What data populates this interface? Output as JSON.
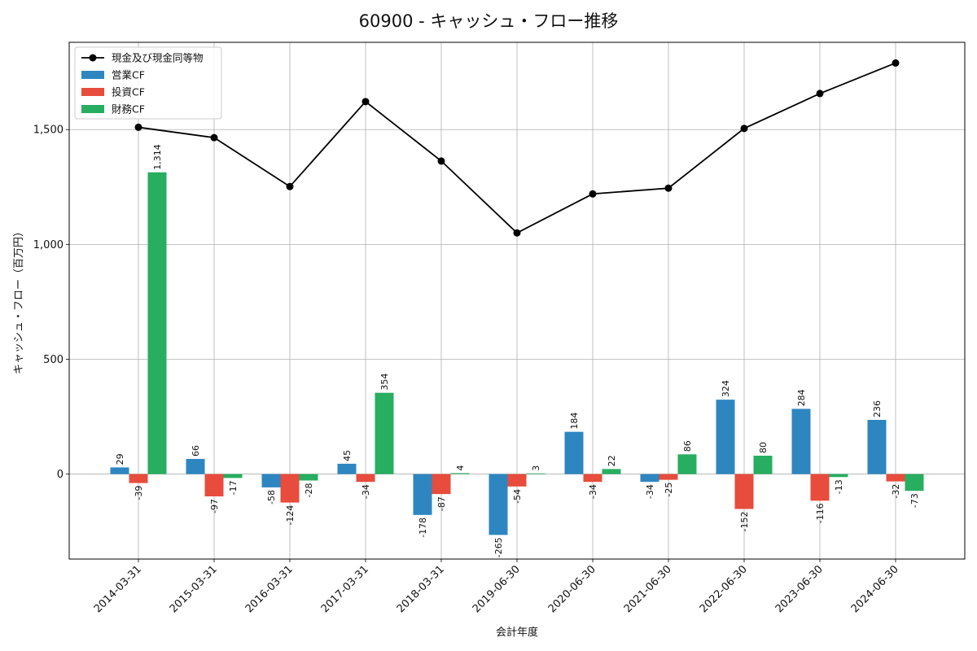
{
  "chart_data": {
    "type": "bar",
    "title": "60900 - キャッシュ・フロー推移",
    "xlabel": "会計年度",
    "ylabel": "キャッシュ・フロー（百万円）",
    "categories": [
      "2014-03-31",
      "2015-03-31",
      "2016-03-31",
      "2017-03-31",
      "2018-03-31",
      "2019-06-30",
      "2020-06-30",
      "2021-06-30",
      "2022-06-30",
      "2023-06-30",
      "2024-06-30"
    ],
    "series": [
      {
        "name": "営業CF",
        "type": "bar",
        "color": "#2e86c1",
        "values": [
          29,
          66,
          -58,
          45,
          -178,
          -265,
          184,
          -34,
          324,
          284,
          236
        ],
        "labels": [
          "29",
          "66",
          "-58",
          "45",
          "-178",
          "-265",
          "184",
          "-34",
          "324",
          "284",
          "236"
        ]
      },
      {
        "name": "投資CF",
        "type": "bar",
        "color": "#e74c3c",
        "values": [
          -39,
          -97,
          -124,
          -34,
          -87,
          -54,
          -34,
          -25,
          -152,
          -116,
          -32
        ],
        "labels": [
          "-39",
          "-97",
          "-124",
          "-34",
          "-87",
          "-54",
          "-34",
          "-25",
          "-152",
          "-116",
          "-32"
        ]
      },
      {
        "name": "財務CF",
        "type": "bar",
        "color": "#27ae60",
        "values": [
          1314,
          -17,
          -28,
          354,
          4,
          3,
          22,
          86,
          80,
          -13,
          -73
        ],
        "labels": [
          "1,314",
          "-17",
          "-28",
          "354",
          "4",
          "3",
          "22",
          "86",
          "80",
          "-13",
          "-73"
        ]
      },
      {
        "name": "現金及び現金同等物",
        "type": "line",
        "color": "#000000",
        "values": [
          1510,
          1465,
          1252,
          1622,
          1363,
          1050,
          1220,
          1245,
          1505,
          1657,
          1790
        ]
      }
    ],
    "ylim": [
      -370,
      1880
    ],
    "yticks": [
      0,
      500,
      1000,
      1500
    ],
    "ytick_labels": [
      "0",
      "500",
      "1,000",
      "1,500"
    ],
    "grid": true,
    "legend_position": "top-left"
  }
}
